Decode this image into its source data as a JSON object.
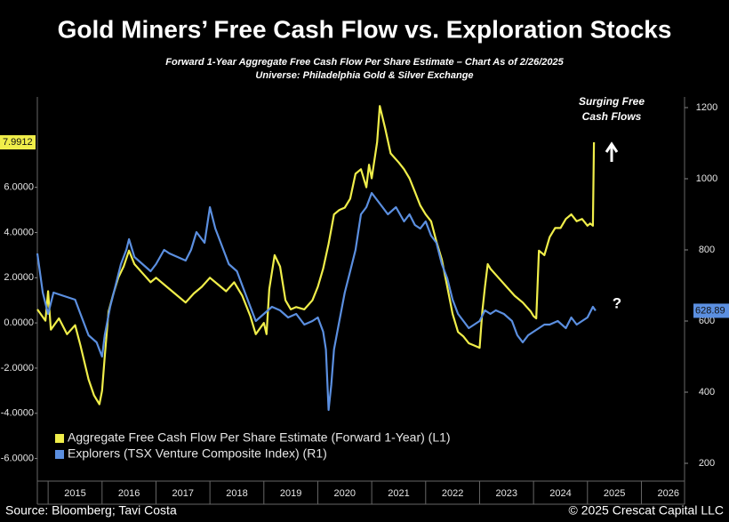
{
  "chart_data": {
    "type": "line",
    "title": "Gold Miners’ Free Cash Flow vs. Exploration Stocks",
    "subtitle": [
      "Forward 1-Year Aggregate Free Cash Flow Per Share Estimate – Chart As of 2/26/2025",
      "Universe: Philadelphia Gold & Silver Exchange"
    ],
    "annotations": [
      "Surging Free",
      "Cash Flows",
      "?"
    ],
    "source": "Source: Bloomberg; Tavi Costa",
    "credit": "© 2025 Crescat Capital LLC",
    "xlim": [
      2014.8,
      2026.8
    ],
    "xticks": [
      2015,
      2016,
      2017,
      2018,
      2019,
      2020,
      2021,
      2022,
      2023,
      2024,
      2025,
      2026
    ],
    "ylim": [
      -7,
      10
    ],
    "yticks": [
      {
        "value": -6,
        "label": "-6.0000"
      },
      {
        "value": -4,
        "label": "-4.0000"
      },
      {
        "value": -2,
        "label": "-2.0000"
      },
      {
        "value": 0,
        "label": "0.0000"
      },
      {
        "value": 2,
        "label": "2.0000"
      },
      {
        "value": 4,
        "label": "4.0000"
      },
      {
        "value": 6,
        "label": "6.0000"
      }
    ],
    "y2lim": [
      150,
      1230
    ],
    "y2ticks": [
      200,
      400,
      600,
      800,
      1000,
      1200
    ],
    "grid": false,
    "legend": "lower left",
    "series": [
      {
        "name": "Aggregate Free Cash Flow Per Share Estimate (Forward 1-Year) (L1)",
        "color": "#f0ee4a",
        "x": [
          2014.8,
          2014.95,
          2015.0,
          2015.05,
          2015.2,
          2015.35,
          2015.5,
          2015.6,
          2015.75,
          2015.85,
          2015.95,
          2016.0,
          2016.05,
          2016.12,
          2016.2,
          2016.3,
          2016.4,
          2016.5,
          2016.6,
          2016.75,
          2016.9,
          2017.0,
          2017.2,
          2017.4,
          2017.55,
          2017.7,
          2017.85,
          2018.0,
          2018.15,
          2018.3,
          2018.45,
          2018.6,
          2018.75,
          2018.85,
          2019.0,
          2019.05,
          2019.1,
          2019.2,
          2019.3,
          2019.4,
          2019.5,
          2019.6,
          2019.75,
          2019.9,
          2020.0,
          2020.1,
          2020.2,
          2020.3,
          2020.4,
          2020.5,
          2020.6,
          2020.7,
          2020.8,
          2020.9,
          2020.95,
          2021.0,
          2021.1,
          2021.15,
          2021.25,
          2021.35,
          2021.5,
          2021.6,
          2021.7,
          2021.8,
          2021.9,
          2022.0,
          2022.1,
          2022.2,
          2022.3,
          2022.4,
          2022.5,
          2022.6,
          2022.7,
          2022.8,
          2022.9,
          2023.0,
          2023.05,
          2023.1,
          2023.15,
          2023.2,
          2023.35,
          2023.5,
          2023.65,
          2023.8,
          2023.95,
          2024.0,
          2024.05,
          2024.1,
          2024.2,
          2024.3,
          2024.4,
          2024.5,
          2024.6,
          2024.7,
          2024.8,
          2024.9,
          2025.0,
          2025.05,
          2025.1,
          2025.12
        ],
        "values": [
          0.6,
          0.1,
          1.4,
          -0.3,
          0.2,
          -0.5,
          -0.1,
          -1.0,
          -2.5,
          -3.2,
          -3.6,
          -3.0,
          -1.5,
          0.5,
          1.2,
          2.0,
          2.5,
          3.2,
          2.6,
          2.2,
          1.8,
          2.0,
          1.6,
          1.2,
          0.9,
          1.3,
          1.6,
          2.0,
          1.7,
          1.4,
          1.8,
          1.2,
          0.3,
          -0.5,
          0.0,
          -0.5,
          1.5,
          3.0,
          2.5,
          1.0,
          0.6,
          0.7,
          0.6,
          1.0,
          1.6,
          2.4,
          3.5,
          4.8,
          5.0,
          5.1,
          5.5,
          6.6,
          6.8,
          6.0,
          7.0,
          6.4,
          8.0,
          9.6,
          8.6,
          7.5,
          7.1,
          6.8,
          6.4,
          5.8,
          5.2,
          4.8,
          4.5,
          3.6,
          2.8,
          1.6,
          0.4,
          -0.4,
          -0.6,
          -0.9,
          -1.0,
          -1.1,
          0.5,
          1.6,
          2.6,
          2.4,
          2.0,
          1.6,
          1.2,
          0.9,
          0.5,
          0.3,
          0.2,
          3.2,
          3.0,
          3.8,
          4.2,
          4.2,
          4.6,
          4.8,
          4.5,
          4.6,
          4.3,
          4.4,
          4.3,
          7.9912
        ]
      },
      {
        "name": "Explorers (TSX Venture Composite Index) (R1)",
        "color": "#5b8fe0",
        "axis": "y2",
        "x": [
          2014.8,
          2014.9,
          2015.0,
          2015.1,
          2015.3,
          2015.5,
          2015.6,
          2015.75,
          2015.9,
          2016.0,
          2016.05,
          2016.15,
          2016.25,
          2016.35,
          2016.45,
          2016.5,
          2016.6,
          2016.75,
          2016.9,
          2017.0,
          2017.15,
          2017.25,
          2017.4,
          2017.55,
          2017.65,
          2017.75,
          2017.9,
          2018.0,
          2018.1,
          2018.2,
          2018.35,
          2018.5,
          2018.6,
          2018.75,
          2018.85,
          2019.0,
          2019.15,
          2019.3,
          2019.45,
          2019.6,
          2019.75,
          2019.9,
          2020.0,
          2020.1,
          2020.15,
          2020.2,
          2020.25,
          2020.3,
          2020.4,
          2020.5,
          2020.6,
          2020.7,
          2020.8,
          2020.9,
          2021.0,
          2021.1,
          2021.2,
          2021.3,
          2021.45,
          2021.6,
          2021.7,
          2021.8,
          2021.9,
          2022.0,
          2022.1,
          2022.2,
          2022.3,
          2022.4,
          2022.5,
          2022.6,
          2022.7,
          2022.8,
          2022.9,
          2023.0,
          2023.1,
          2023.2,
          2023.3,
          2023.45,
          2023.6,
          2023.7,
          2023.8,
          2023.9,
          2024.0,
          2024.1,
          2024.2,
          2024.3,
          2024.45,
          2024.6,
          2024.7,
          2024.8,
          2024.9,
          2025.0,
          2025.1,
          2025.15
        ],
        "values": [
          790,
          680,
          620,
          680,
          670,
          660,
          620,
          560,
          540,
          500,
          560,
          640,
          700,
          760,
          800,
          830,
          780,
          760,
          740,
          760,
          800,
          790,
          780,
          770,
          800,
          850,
          820,
          920,
          860,
          820,
          760,
          740,
          700,
          640,
          600,
          620,
          640,
          630,
          610,
          620,
          590,
          600,
          610,
          570,
          520,
          350,
          420,
          520,
          600,
          680,
          740,
          800,
          900,
          920,
          960,
          940,
          920,
          900,
          920,
          880,
          900,
          870,
          860,
          880,
          840,
          820,
          760,
          720,
          660,
          620,
          600,
          580,
          590,
          600,
          630,
          620,
          630,
          620,
          600,
          560,
          540,
          560,
          570,
          580,
          590,
          590,
          600,
          580,
          610,
          590,
          600,
          610,
          640,
          628.89
        ]
      }
    ]
  }
}
